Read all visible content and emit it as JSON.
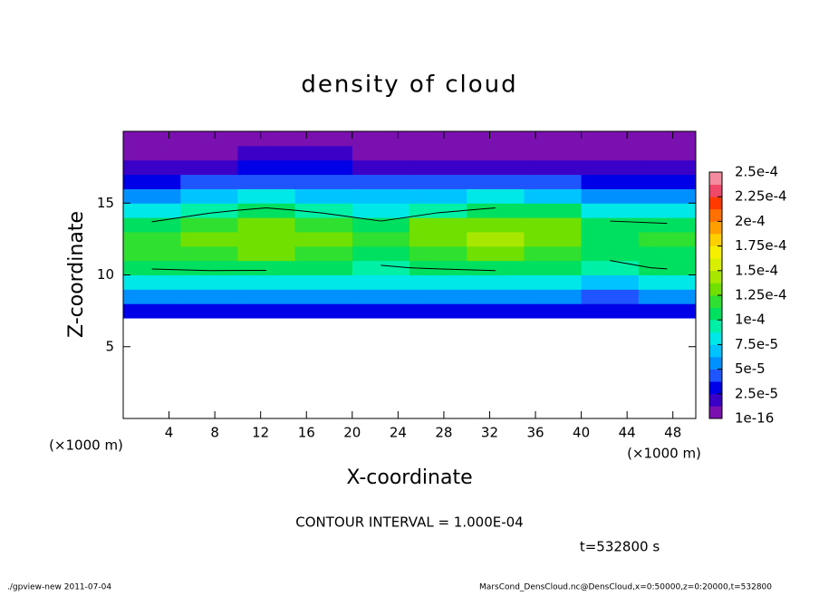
{
  "chart_data": {
    "type": "contour",
    "title": "density of cloud",
    "xlabel": "X-coordinate",
    "ylabel": "Z-coordinate",
    "xunit": "(×1000 m)",
    "yunit": "(×1000 m)",
    "xlim": [
      0,
      50
    ],
    "ylim": [
      0,
      20
    ],
    "xticks": [
      4,
      8,
      12,
      16,
      20,
      24,
      28,
      32,
      36,
      40,
      44,
      48
    ],
    "yticks": [
      5,
      10,
      15
    ],
    "x": [
      2.5,
      7.5,
      12.5,
      17.5,
      22.5,
      27.5,
      32.5,
      37.5,
      42.5,
      47.5
    ],
    "y": [
      7.5,
      8.5,
      9.5,
      10.5,
      11.5,
      12.5,
      13.5,
      14.5,
      15.5,
      16.5,
      17.5,
      18.5,
      19.5
    ],
    "z": [
      [
        3e-05,
        3e-05,
        3e-05,
        3e-05,
        3e-05,
        3e-05,
        3e-05,
        3e-05,
        2.8e-05,
        2.8e-05
      ],
      [
        5.5e-05,
        5.5e-05,
        5e-05,
        5e-05,
        5e-05,
        5e-05,
        5e-05,
        5e-05,
        4.5e-05,
        5e-05
      ],
      [
        8e-05,
        8e-05,
        7.8e-05,
        7.5e-05,
        7.5e-05,
        7.8e-05,
        8e-05,
        7.5e-05,
        7e-05,
        7.8e-05
      ],
      [
        0.000102,
        0.000105,
        0.000105,
        0.0001,
        9.8e-05,
        0.000102,
        0.000105,
        0.0001,
        9.5e-05,
        0.000102
      ],
      [
        0.000115,
        0.00012,
        0.000125,
        0.000115,
        0.00011,
        0.00012,
        0.000125,
        0.00012,
        0.000105,
        0.00011
      ],
      [
        0.00012,
        0.00013,
        0.000135,
        0.000125,
        0.000115,
        0.00013,
        0.00014,
        0.00013,
        0.00011,
        0.000115
      ],
      [
        0.000105,
        0.00012,
        0.00013,
        0.00012,
        0.000105,
        0.000125,
        0.000135,
        0.000125,
        0.000105,
        0.000102
      ],
      [
        8e-05,
        9.5e-05,
        0.000105,
        9.5e-05,
        8.5e-05,
        9.5e-05,
        0.000105,
        0.0001,
        8.5e-05,
        8e-05
      ],
      [
        5.5e-05,
        6.5e-05,
        7.5e-05,
        7e-05,
        6.5e-05,
        7e-05,
        7.5e-05,
        7e-05,
        6e-05,
        5.5e-05
      ],
      [
        3.5e-05,
        4e-05,
        4.5e-05,
        4.5e-05,
        4e-05,
        4.5e-05,
        4.5e-05,
        4e-05,
        3.5e-05,
        3e-05
      ],
      [
        1.5e-05,
        2e-05,
        2.5e-05,
        2.5e-05,
        2.2e-05,
        2e-05,
        2e-05,
        2e-05,
        1.5e-05,
        1.5e-05
      ],
      [
        8e-06,
        1.2e-05,
        1.5e-05,
        1.5e-05,
        1.2e-05,
        8e-06,
        5e-06,
        8e-06,
        1e-05,
        8e-06
      ],
      [
        5e-06,
        1e-05,
        1.2e-05,
        1.2e-05,
        1e-05,
        5e-06,
        3e-06,
        5e-06,
        8e-06,
        5e-06
      ]
    ],
    "clim": [
      0,
      0.00025
    ],
    "colors": [
      "#7a10b0",
      "#3a00c8",
      "#0000e8",
      "#1f55ff",
      "#0090ff",
      "#00c4ff",
      "#00e8e8",
      "#00f0a8",
      "#00e060",
      "#30e030",
      "#70e000",
      "#a8e800",
      "#d8f000",
      "#f4f000",
      "#ffd000",
      "#ffa000",
      "#ff7000",
      "#ff3a00",
      "#f04868",
      "#f48ca0"
    ],
    "colorbar_ticks": [
      {
        "value": 1e-16,
        "label": "1e-16"
      },
      {
        "value": 2.5e-05,
        "label": "2.5e-5"
      },
      {
        "value": 5e-05,
        "label": "5e-5"
      },
      {
        "value": 7.5e-05,
        "label": "7.5e-5"
      },
      {
        "value": 0.0001,
        "label": "1e-4"
      },
      {
        "value": 0.000125,
        "label": "1.25e-4"
      },
      {
        "value": 0.00015,
        "label": "1.5e-4"
      },
      {
        "value": 0.000175,
        "label": "1.75e-4"
      },
      {
        "value": 0.0002,
        "label": "2e-4"
      },
      {
        "value": 0.000225,
        "label": "2.25e-4"
      },
      {
        "value": 0.00025,
        "label": "2.5e-4"
      }
    ],
    "contour_levels": [
      0.0001
    ],
    "contour_note": "CONTOUR INTERVAL = 1.000E-04",
    "time_label": "t=532800 s",
    "footer_left": "./gpview-new   2011-07-04",
    "footer_right": "MarsCond_DensCloud.nc@DensCloud,x=0:50000,z=0:20000,t=532800"
  }
}
